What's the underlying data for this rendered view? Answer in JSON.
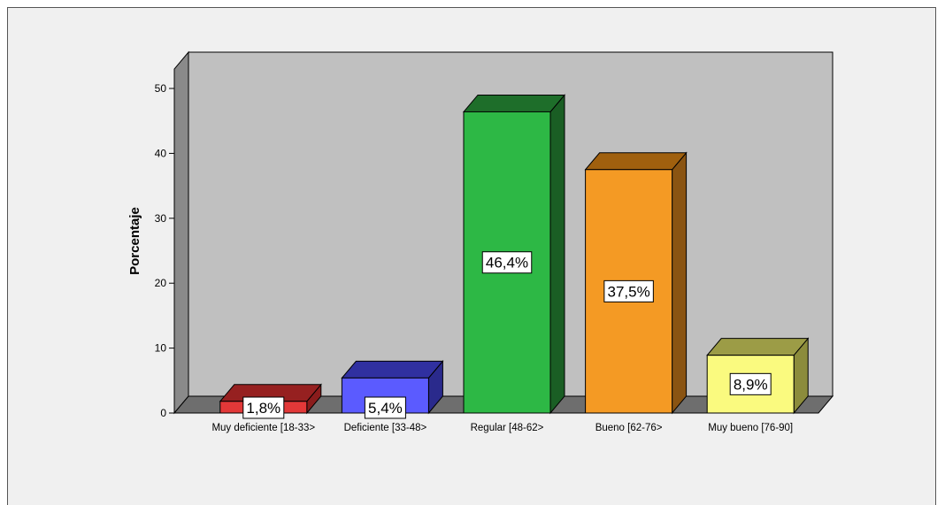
{
  "chart_data": {
    "type": "bar",
    "categories": [
      "Muy deficiente [18-33>",
      "Deficiente [33-48>",
      "Regular [48-62>",
      "Bueno [62-76>",
      "Muy bueno [76-90]"
    ],
    "values": [
      1.8,
      5.4,
      46.4,
      37.5,
      8.9
    ],
    "data_labels": [
      "1,8%",
      "5,4%",
      "46,4%",
      "37,5%",
      "8,9%"
    ],
    "title": "",
    "xlabel": "",
    "ylabel": "Porcentaje",
    "ylim": [
      0,
      53
    ],
    "yticks": [
      0,
      10,
      20,
      30,
      40,
      50
    ],
    "grid": false,
    "legend": "none",
    "style": "3d",
    "colors": {
      "bars": [
        "#e23838",
        "#5b5bff",
        "#2db845",
        "#f49a24",
        "#fafa7f"
      ],
      "bars_top": [
        "#962020",
        "#3030a0",
        "#1e6e2a",
        "#a0600e",
        "#9c9c46"
      ],
      "bars_side": [
        "#8a1c1c",
        "#2a2a8c",
        "#1a5e24",
        "#8a5412",
        "#8c8c3c"
      ],
      "wall": "#c0c0c0",
      "side_wall": "#8a8a8a",
      "floor": "#6e6e6e",
      "background": "#f0f0f0"
    }
  }
}
